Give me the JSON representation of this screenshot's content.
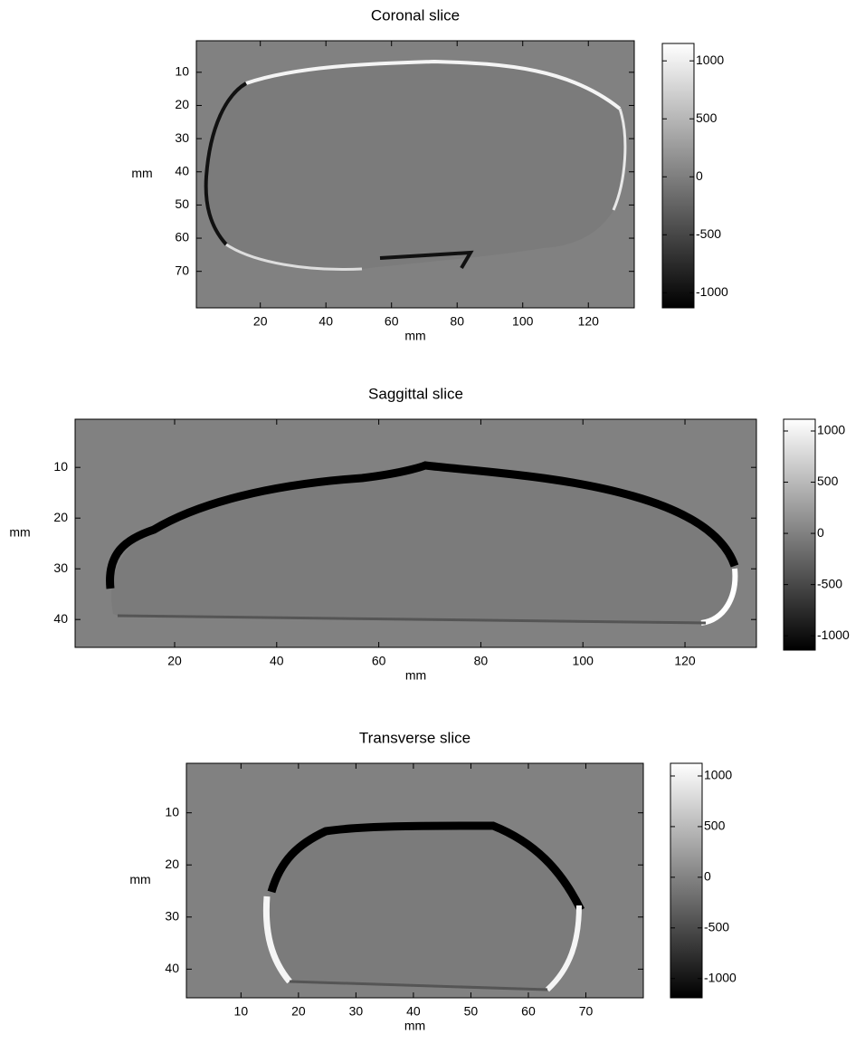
{
  "chart_data": [
    {
      "type": "image",
      "title": "Coronal slice",
      "xlabel": "mm",
      "ylabel": "mm",
      "xlim": [
        0.5,
        134
      ],
      "ylim": [
        0.5,
        81
      ],
      "yaxis_reversed": true,
      "xticks": [
        20,
        40,
        60,
        80,
        100,
        120
      ],
      "yticks": [
        10,
        20,
        30,
        40,
        50,
        60,
        70
      ],
      "colorbar": {
        "clim": [
          -1130,
          1150
        ],
        "ticks": [
          1000,
          500,
          0,
          -500,
          -1000
        ]
      }
    },
    {
      "type": "image",
      "title": "Saggittal slice",
      "xlabel": "mm",
      "ylabel": "mm",
      "xlim": [
        0.5,
        134
      ],
      "ylim": [
        0.5,
        45.5
      ],
      "yaxis_reversed": true,
      "xticks": [
        20,
        40,
        60,
        80,
        100,
        120
      ],
      "yticks": [
        10,
        20,
        30,
        40
      ],
      "colorbar": {
        "clim": [
          -1140,
          1115
        ],
        "ticks": [
          1000,
          500,
          0,
          -500,
          -1000
        ]
      }
    },
    {
      "type": "image",
      "title": "Transverse slice",
      "xlabel": "mm",
      "ylabel": "mm",
      "xlim": [
        0.5,
        80
      ],
      "ylim": [
        0.5,
        45.5
      ],
      "yaxis_reversed": true,
      "xticks": [
        10,
        20,
        30,
        40,
        50,
        60,
        70
      ],
      "yticks": [
        10,
        20,
        30,
        40
      ],
      "colorbar": {
        "clim": [
          -1190,
          1125
        ],
        "ticks": [
          1000,
          500,
          0,
          -500,
          -1000
        ]
      }
    }
  ]
}
